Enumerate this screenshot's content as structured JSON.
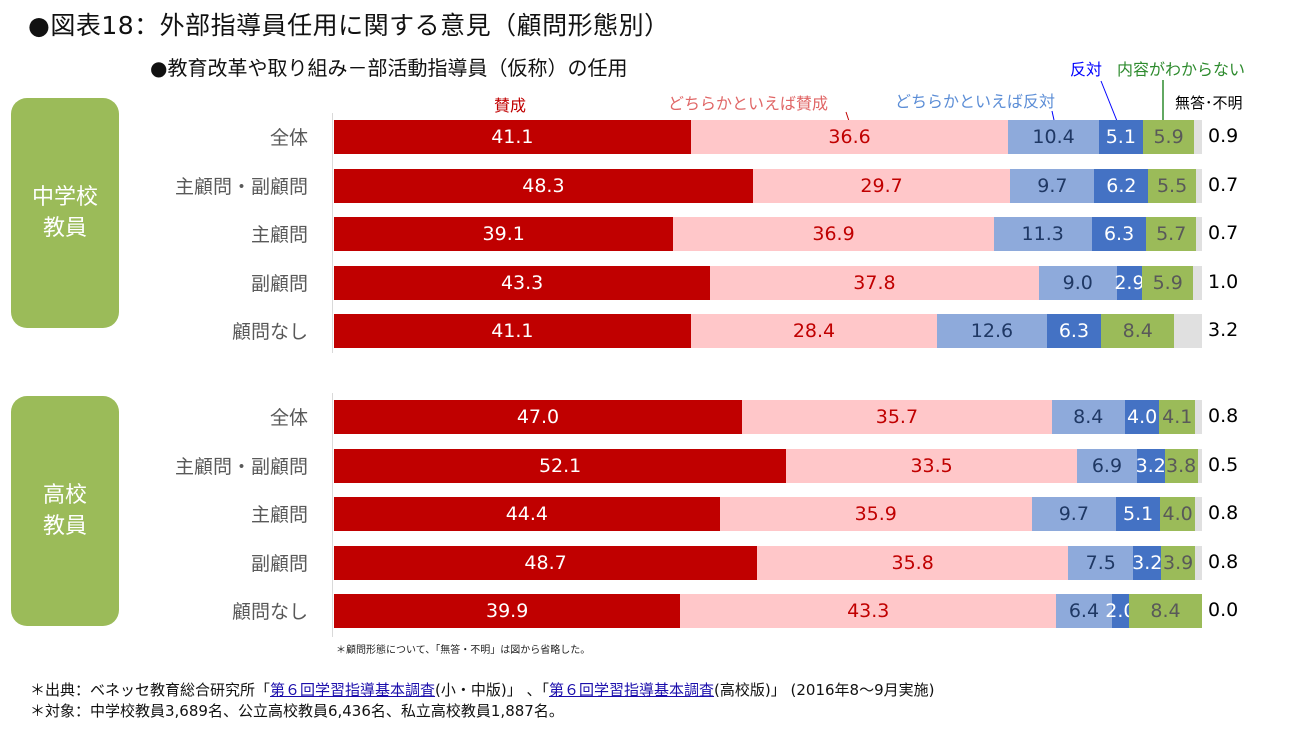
{
  "chart_data": {
    "type": "bar",
    "orientation": "horizontal-stacked-100",
    "title": "●図表18：外部指導員任用に関する意見（顧問形態別）",
    "subtitle": "●教育改革や取り組み－部活動指導員（仮称）の任用",
    "xlim": [
      0,
      100
    ],
    "series": [
      {
        "name": "賛成",
        "color": "#c00000",
        "label_color": "#ffffff"
      },
      {
        "name": "どちらかといえば賛成",
        "color": "#ffc7c9",
        "label_color": "#c00000"
      },
      {
        "name": "どちらかといえば反対",
        "color": "#8eaadb",
        "label_color": "#1f3864"
      },
      {
        "name": "反対",
        "color": "#4472c4",
        "label_color": "#ffffff"
      },
      {
        "name": "内容がわからない",
        "color": "#9bbb59",
        "label_color": "#595959"
      },
      {
        "name": "無答･不明",
        "color": "#e0e0e0",
        "label_color": "#000000"
      }
    ],
    "legend_colors": {
      "賛成": "#c00000",
      "どちらかといえば賛成": "#e06666",
      "どちらかといえば反対": "#5b8dd6",
      "反対": "#0000ff",
      "内容がわからない": "#2e8b2e",
      "無答･不明": "#000000"
    },
    "groups": [
      {
        "name": "中学校\n教員",
        "rows": [
          {
            "label": "全体",
            "values": [
              41.1,
              36.6,
              10.4,
              5.1,
              5.9,
              0.9
            ]
          },
          {
            "label": "主顧問・副顧問",
            "values": [
              48.3,
              29.7,
              9.7,
              6.2,
              5.5,
              0.7
            ]
          },
          {
            "label": "主顧問",
            "values": [
              39.1,
              36.9,
              11.3,
              6.3,
              5.7,
              0.7
            ]
          },
          {
            "label": "副顧問",
            "values": [
              43.3,
              37.8,
              9.0,
              2.9,
              5.9,
              1.0
            ]
          },
          {
            "label": "顧問なし",
            "values": [
              41.1,
              28.4,
              12.6,
              6.3,
              8.4,
              3.2
            ]
          }
        ]
      },
      {
        "name": "高校\n教員",
        "rows": [
          {
            "label": "全体",
            "values": [
              47.0,
              35.7,
              8.4,
              4.0,
              4.1,
              0.8
            ]
          },
          {
            "label": "主顧問・副顧問",
            "values": [
              52.1,
              33.5,
              6.9,
              3.2,
              3.8,
              0.5
            ]
          },
          {
            "label": "主顧問",
            "values": [
              44.4,
              35.9,
              9.7,
              5.1,
              4.0,
              0.8
            ]
          },
          {
            "label": "副顧問",
            "values": [
              48.7,
              35.8,
              7.5,
              3.2,
              3.9,
              0.8
            ]
          },
          {
            "label": "顧問なし",
            "values": [
              39.9,
              43.3,
              6.4,
              2.0,
              8.4,
              0.0
            ]
          }
        ]
      }
    ]
  },
  "notes": {
    "omitted": "＊顧問形態について、「無答・不明」は図から省略した。",
    "source_prefix": "＊出典：ベネッセ教育総合研究所「",
    "source_link1": "第６回学習指導基本調査",
    "source_mid1": "(小・中版)」 、「",
    "source_link2": "第６回学習指導基本調査",
    "source_suffix": "(高校版)」 (2016年8～9月実施)",
    "target": "＊対象：中学校教員3,689名、公立高校教員6,436名、私立高校教員1,887名。"
  }
}
